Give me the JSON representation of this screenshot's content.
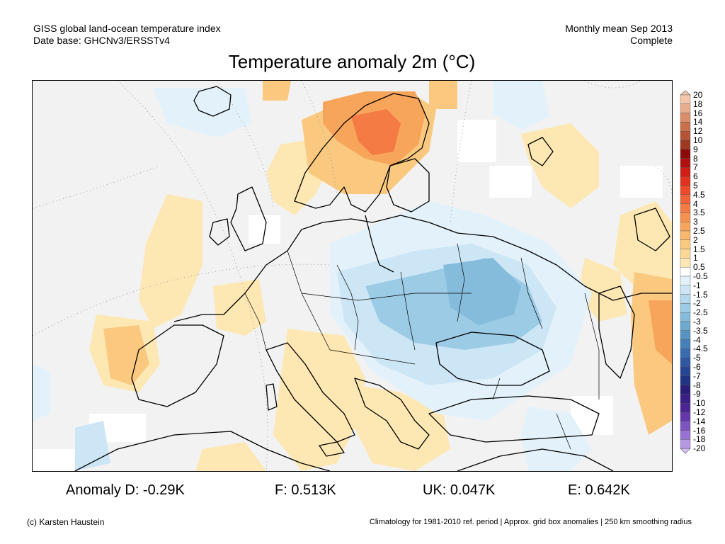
{
  "header": {
    "line1_left": "GISS global land-ocean temperature index",
    "line2_left": "Date base: GHCNv3/ERSSTv4",
    "line1_right": "Monthly mean Sep 2013",
    "line2_right": "Complete"
  },
  "title": "Temperature anomaly 2m (°C)",
  "legend": {
    "labels": [
      "20",
      "18",
      "16",
      "14",
      "12",
      "10",
      "9",
      "8",
      "7",
      "6",
      "5",
      "4.5",
      "4",
      "3.5",
      "3",
      "2.5",
      "2",
      "1.5",
      "1",
      "0.5",
      "-0.5",
      "-1",
      "-1.5",
      "-2",
      "-2.5",
      "-3",
      "-3.5",
      "-4",
      "-4.5",
      "-5",
      "-6",
      "-7",
      "-8",
      "-9",
      "-10",
      "-12",
      "-14",
      "-16",
      "-18",
      "-20"
    ],
    "colors": [
      "#f4c6ab",
      "#e8ad8e",
      "#d98d6b",
      "#c9704d",
      "#b55334",
      "#9e3921",
      "#8c0a0a",
      "#b0100f",
      "#d01d16",
      "#e0321f",
      "#ec4a2b",
      "#f1633a",
      "#f57b45",
      "#f79150",
      "#f8a55c",
      "#f9b86b",
      "#fac97f",
      "#fbd896",
      "#fde7b2",
      "#ffffff",
      "#e3f1fa",
      "#cde6f6",
      "#b4d9ef",
      "#9ccbe6",
      "#85bcdc",
      "#6ea9d0",
      "#5794c3",
      "#4580b8",
      "#3a6cad",
      "#2f57a2",
      "#264593",
      "#1f3482",
      "#2a1e7a",
      "#3b1d86",
      "#4c2594",
      "#6238ab",
      "#7d55c1",
      "#9873d3",
      "#b597e2",
      "#d2bef0"
    ]
  },
  "map_legend_units": "°C",
  "stats": {
    "d": "Anomaly D: -0.29K",
    "f": "F: 0.513K",
    "uk": "UK: 0.047K",
    "e": "E: 0.642K"
  },
  "footer": {
    "left": "(c) Karsten Haustein",
    "right": "Climatology for 1981-2010 ref. period | Approx. grid box anomalies | 250 km smoothing radius"
  }
}
